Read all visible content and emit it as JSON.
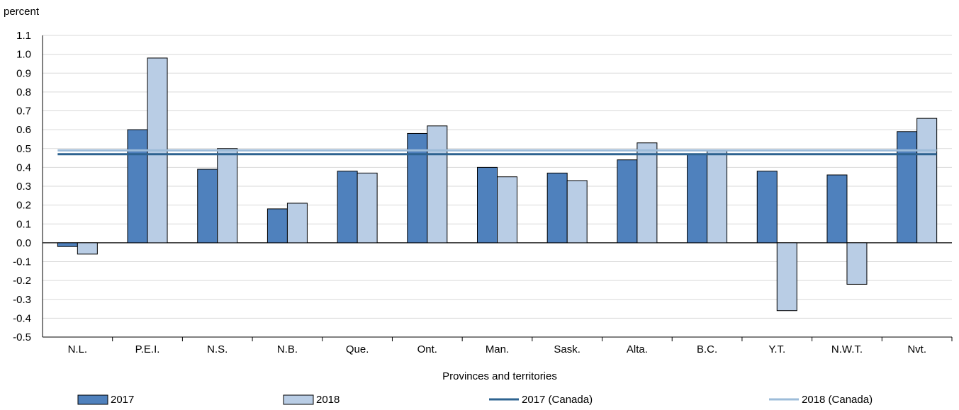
{
  "chart_data": {
    "type": "bar",
    "ylabel": "percent",
    "xlabel": "Provinces and territories",
    "ylim": [
      -0.5,
      1.1
    ],
    "ytick_step": 0.1,
    "grid": true,
    "legend_position": "bottom",
    "categories": [
      "N.L.",
      "P.E.I.",
      "N.S.",
      "N.B.",
      "Que.",
      "Ont.",
      "Man.",
      "Sask.",
      "Alta.",
      "B.C.",
      "Y.T.",
      "N.W.T.",
      "Nvt."
    ],
    "series": [
      {
        "name": "2017",
        "type": "bar",
        "color": "#4f81bd",
        "values": [
          -0.02,
          0.6,
          0.39,
          0.18,
          0.38,
          0.58,
          0.4,
          0.37,
          0.44,
          0.47,
          0.38,
          0.36,
          0.59
        ]
      },
      {
        "name": "2018",
        "type": "bar",
        "color": "#b9cde5",
        "values": [
          -0.06,
          0.98,
          0.5,
          0.21,
          0.37,
          0.62,
          0.35,
          0.33,
          0.53,
          0.49,
          -0.36,
          -0.22,
          0.66
        ]
      },
      {
        "name": "2017 (Canada)",
        "type": "line",
        "color": "#2e6390",
        "value": 0.47
      },
      {
        "name": "2018 (Canada)",
        "type": "line",
        "color": "#9dbcd9",
        "value": 0.49
      }
    ]
  }
}
